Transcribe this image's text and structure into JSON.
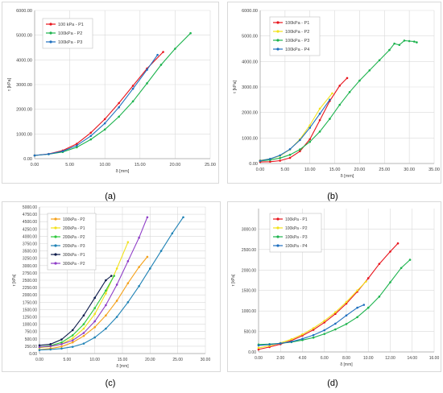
{
  "captions": [
    "(a)",
    "(b)",
    "(c)",
    "(d)"
  ],
  "chart_data": [
    {
      "type": "line",
      "xlabel": "δ [mm]",
      "ylabel": "τ [kPa]",
      "xlim": [
        0,
        25
      ],
      "ylim": [
        0,
        6000
      ],
      "xticks": [
        "0.00",
        "5.00",
        "10.00",
        "15.00",
        "20.00",
        "25.00"
      ],
      "yticks": [
        "0.00",
        "1000.00",
        "2000.00",
        "3000.00",
        "4000.00",
        "5000.00",
        "6000.00"
      ],
      "grid": true,
      "legend_position": "top-left",
      "series": [
        {
          "name": "100 kPa - P1",
          "color": "#e8141c",
          "x": [
            0,
            2,
            4,
            6,
            8,
            10,
            12,
            14,
            16,
            18.3
          ],
          "y": [
            130,
            190,
            330,
            600,
            1050,
            1600,
            2250,
            2950,
            3650,
            4320
          ]
        },
        {
          "name": "100kPa - P2",
          "color": "#1db34e",
          "x": [
            0,
            2,
            4,
            6,
            8,
            10,
            12,
            14,
            16,
            18,
            20,
            22.2
          ],
          "y": [
            130,
            180,
            270,
            460,
            780,
            1180,
            1700,
            2320,
            3050,
            3800,
            4450,
            5080
          ]
        },
        {
          "name": "100kPa - P3",
          "color": "#1f6fbf",
          "x": [
            0,
            2,
            4,
            6,
            8,
            10,
            12,
            14,
            16,
            17.5
          ],
          "y": [
            130,
            185,
            300,
            530,
            920,
            1430,
            2080,
            2830,
            3600,
            4200
          ]
        }
      ]
    },
    {
      "type": "line",
      "xlabel": "δ [mm]",
      "ylabel": "τ [kPa]",
      "xlim": [
        0,
        35
      ],
      "ylim": [
        0,
        6000
      ],
      "xticks": [
        "0.00",
        "5.00",
        "10.00",
        "15.00",
        "20.00",
        "25.00",
        "30.00",
        "35.00"
      ],
      "yticks": [
        "0.00",
        "1000.00",
        "2000.00",
        "3000.00",
        "4000.00",
        "5000.00",
        "6000.00"
      ],
      "grid": true,
      "legend_position": "top-left",
      "series": [
        {
          "name": "100kPa - P1",
          "color": "#e8141c",
          "x": [
            0,
            2,
            4,
            6,
            8,
            10,
            12,
            14,
            16,
            17.5
          ],
          "y": [
            60,
            70,
            110,
            220,
            480,
            950,
            1700,
            2450,
            3050,
            3350
          ]
        },
        {
          "name": "100kPa - P2",
          "color": "#f2e21b",
          "x": [
            0,
            2,
            4,
            6,
            8,
            10,
            12,
            14.5
          ],
          "y": [
            120,
            180,
            300,
            550,
            950,
            1500,
            2150,
            2750
          ]
        },
        {
          "name": "100kPa - P3",
          "color": "#1db34e",
          "x": [
            0,
            2,
            4,
            6,
            8,
            10,
            12,
            14,
            16,
            18,
            20,
            22,
            24,
            26,
            27,
            28,
            29,
            30,
            31,
            31.5
          ],
          "y": [
            100,
            140,
            210,
            340,
            550,
            850,
            1250,
            1750,
            2300,
            2800,
            3250,
            3650,
            4050,
            4450,
            4700,
            4650,
            4820,
            4800,
            4780,
            4750
          ]
        },
        {
          "name": "100kPa - P4",
          "color": "#1f6fbf",
          "x": [
            0,
            2,
            4,
            6,
            8,
            10,
            12,
            14
          ],
          "y": [
            110,
            180,
            320,
            560,
            920,
            1400,
            1950,
            2500
          ]
        }
      ]
    },
    {
      "type": "line",
      "xlabel": "δ [mm]",
      "ylabel": "τ [kPa]",
      "xlim": [
        0,
        30
      ],
      "ylim": [
        0,
        5000
      ],
      "xticks": [
        "0.00",
        "5.00",
        "10.00",
        "15.00",
        "20.00",
        "25.00",
        "30.00"
      ],
      "yticks": [
        "0.00",
        "250.00",
        "500.00",
        "750.00",
        "1000.00",
        "1250.00",
        "1500.00",
        "1750.00",
        "2000.00",
        "2250.00",
        "2500.00",
        "2750.00",
        "3000.00",
        "3250.00",
        "3500.00",
        "3750.00",
        "4000.00",
        "4250.00",
        "4500.00",
        "4750.00",
        "5000.00"
      ],
      "grid": true,
      "legend_position": "top-left",
      "series": [
        {
          "name": "100kPa - P2",
          "color": "#f5a11a",
          "x": [
            0,
            2,
            4,
            6,
            8,
            10,
            12,
            14,
            16,
            18,
            19.5
          ],
          "y": [
            130,
            170,
            240,
            380,
            600,
            900,
            1300,
            1800,
            2400,
            2950,
            3300
          ]
        },
        {
          "name": "200kPa - P1",
          "color": "#f2e21b",
          "x": [
            0,
            2,
            4,
            6,
            8,
            10,
            12,
            14,
            16
          ],
          "y": [
            200,
            240,
            330,
            520,
            850,
            1350,
            2050,
            2900,
            3800
          ]
        },
        {
          "name": "200kPa - P2",
          "color": "#2ec83c",
          "x": [
            0,
            2,
            4,
            6,
            8,
            10,
            12,
            13.5
          ],
          "y": [
            220,
            270,
            380,
            620,
            1000,
            1550,
            2150,
            2650
          ]
        },
        {
          "name": "200kPa - P3",
          "color": "#1f82b5",
          "x": [
            0,
            2,
            4,
            6,
            8,
            10,
            12,
            14,
            16,
            18,
            20,
            22,
            24,
            26
          ],
          "y": [
            120,
            140,
            170,
            230,
            340,
            550,
            850,
            1250,
            1750,
            2300,
            2900,
            3500,
            4100,
            4650
          ]
        },
        {
          "name": "300kPa - P1",
          "color": "#0b1a4a",
          "x": [
            0,
            2,
            4,
            6,
            8,
            10,
            12,
            13
          ],
          "y": [
            280,
            320,
            480,
            800,
            1300,
            1900,
            2500,
            2650
          ]
        },
        {
          "name": "300kPa - P2",
          "color": "#8e3cc7",
          "x": [
            0,
            2,
            4,
            6,
            8,
            10,
            12,
            14,
            16,
            18,
            19.5
          ],
          "y": [
            220,
            250,
            320,
            450,
            700,
            1100,
            1650,
            2350,
            3150,
            3950,
            4650
          ]
        }
      ]
    },
    {
      "type": "line",
      "xlabel": "δ [mm]",
      "ylabel": "τ [kPa]",
      "xlim": [
        0,
        16
      ],
      "ylim": [
        0,
        3500
      ],
      "xticks": [
        "0.00",
        "2.00",
        "4.00",
        "6.00",
        "8.00",
        "10.00",
        "12.00",
        "14.00",
        "16.00"
      ],
      "yticks": [
        "0.00",
        "500.00",
        "1000.00",
        "1500.00",
        "2000.00",
        "2500.00",
        "3000.00"
      ],
      "grid": true,
      "legend_position": "top-left",
      "series": [
        {
          "name": "100kPa - P1",
          "color": "#e8141c",
          "x": [
            0,
            1,
            2,
            3,
            4,
            5,
            6,
            7,
            8,
            9,
            10,
            11,
            12,
            12.7
          ],
          "y": [
            60,
            120,
            190,
            280,
            400,
            540,
            720,
            930,
            1180,
            1470,
            1800,
            2150,
            2450,
            2650
          ]
        },
        {
          "name": "100kPa - P2",
          "color": "#f2e21b",
          "x": [
            0,
            1,
            2,
            3,
            4,
            5,
            6,
            7,
            8,
            9,
            9.8
          ],
          "y": [
            100,
            150,
            220,
            310,
            430,
            580,
            760,
            970,
            1220,
            1500,
            1720
          ]
        },
        {
          "name": "100kPa - P3",
          "color": "#1db34e",
          "x": [
            0,
            1,
            2,
            3,
            4,
            5,
            6,
            7,
            8,
            9,
            10,
            11,
            12,
            13,
            13.8
          ],
          "y": [
            180,
            190,
            210,
            240,
            290,
            350,
            440,
            550,
            680,
            850,
            1080,
            1350,
            1700,
            2050,
            2250
          ]
        },
        {
          "name": "100kPa - P4",
          "color": "#1f6fbf",
          "x": [
            0,
            1,
            2,
            3,
            4,
            5,
            6,
            7,
            8,
            9,
            9.6
          ],
          "y": [
            160,
            180,
            210,
            250,
            320,
            410,
            530,
            690,
            890,
            1080,
            1150
          ]
        }
      ]
    }
  ]
}
